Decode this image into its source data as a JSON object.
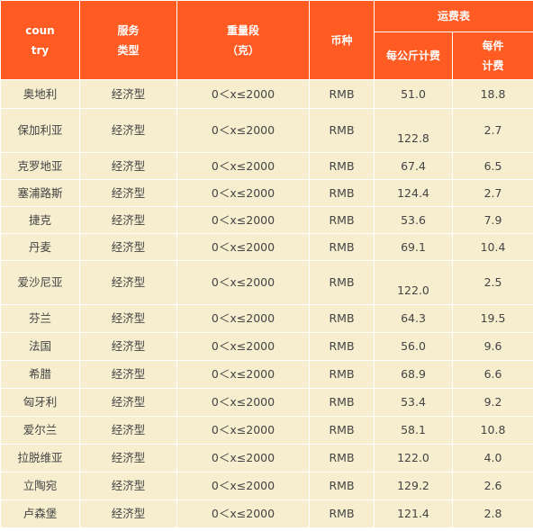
{
  "colors": {
    "header_bg": "#FF5B22",
    "row_bg": "#F6EECF",
    "header_text": "#FFFFFF"
  },
  "header": {
    "country": [
      "coun",
      "try"
    ],
    "service_type": [
      "服务",
      "类型"
    ],
    "weight_range": [
      "重量段",
      "（克）"
    ],
    "currency": "币种",
    "shipping_table": "运费表",
    "per_kg": "每公斤计费",
    "per_item": [
      "每件",
      "计费"
    ]
  },
  "rows": [
    {
      "country": "奥地利",
      "service": "经济型",
      "weight": "0＜x≤2000",
      "currency": "RMB",
      "per_kg": "51.0",
      "per_item": "18.8"
    },
    {
      "country": "保加利亚",
      "service": "经济型",
      "weight": "0＜x≤2000",
      "currency": "RMB",
      "per_kg": "122.8",
      "per_item": "2.7"
    },
    {
      "country": "克罗地亚",
      "service": "经济型",
      "weight": "0＜x≤2000",
      "currency": "RMB",
      "per_kg": "67.4",
      "per_item": "6.5"
    },
    {
      "country": "塞浦路斯",
      "service": "经济型",
      "weight": "0＜x≤2000",
      "currency": "RMB",
      "per_kg": "124.4",
      "per_item": "2.7"
    },
    {
      "country": "捷克",
      "service": "经济型",
      "weight": "0＜x≤2000",
      "currency": "RMB",
      "per_kg": "53.6",
      "per_item": "7.9"
    },
    {
      "country": "丹麦",
      "service": "经济型",
      "weight": "0＜x≤2000",
      "currency": "RMB",
      "per_kg": "69.1",
      "per_item": "10.4"
    },
    {
      "country": "爱沙尼亚",
      "service": "经济型",
      "weight": "0＜x≤2000",
      "currency": "RMB",
      "per_kg": "122.0",
      "per_item": "2.5"
    },
    {
      "country": "芬兰",
      "service": "经济型",
      "weight": "0＜x≤2000",
      "currency": "RMB",
      "per_kg": "64.3",
      "per_item": "19.5"
    },
    {
      "country": "法国",
      "service": "经济型",
      "weight": "0＜x≤2000",
      "currency": "RMB",
      "per_kg": "56.0",
      "per_item": "9.6"
    },
    {
      "country": "希腊",
      "service": "经济型",
      "weight": "0＜x≤2000",
      "currency": "RMB",
      "per_kg": "68.9",
      "per_item": "6.6"
    },
    {
      "country": "匈牙利",
      "service": "经济型",
      "weight": "0＜x≤2000",
      "currency": "RMB",
      "per_kg": "53.4",
      "per_item": "9.2"
    },
    {
      "country": "爱尔兰",
      "service": "经济型",
      "weight": "0＜x≤2000",
      "currency": "RMB",
      "per_kg": "58.1",
      "per_item": "10.8"
    },
    {
      "country": "拉脱维亚",
      "service": "经济型",
      "weight": "0＜x≤2000",
      "currency": "RMB",
      "per_kg": "122.0",
      "per_item": "4.0"
    },
    {
      "country": "立陶宛",
      "service": "经济型",
      "weight": "0＜x≤2000",
      "currency": "RMB",
      "per_kg": "129.2",
      "per_item": "2.6"
    },
    {
      "country": "卢森堡",
      "service": "经济型",
      "weight": "0＜x≤2000",
      "currency": "RMB",
      "per_kg": "121.4",
      "per_item": "2.8"
    }
  ]
}
